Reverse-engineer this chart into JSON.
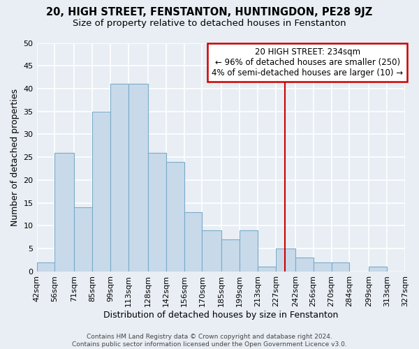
{
  "title": "20, HIGH STREET, FENSTANTON, HUNTINGDON, PE28 9JZ",
  "subtitle": "Size of property relative to detached houses in Fenstanton",
  "xlabel": "Distribution of detached houses by size in Fenstanton",
  "ylabel": "Number of detached properties",
  "bin_edges": [
    42,
    56,
    71,
    85,
    99,
    113,
    128,
    142,
    156,
    170,
    185,
    199,
    213,
    227,
    242,
    256,
    270,
    284,
    299,
    313,
    327
  ],
  "bar_heights": [
    2,
    26,
    14,
    35,
    41,
    41,
    26,
    24,
    13,
    9,
    7,
    9,
    1,
    5,
    3,
    2,
    2,
    0,
    1,
    0
  ],
  "bar_color": "#c8daea",
  "bar_edge_color": "#7aaac8",
  "reference_line_x": 234,
  "reference_line_color": "#cc0000",
  "annotation_line1": "20 HIGH STREET: 234sqm",
  "annotation_line2": "← 96% of detached houses are smaller (250)",
  "annotation_line3": "4% of semi-detached houses are larger (10) →",
  "annotation_box_color": "#ffffff",
  "annotation_box_edge_color": "#cc0000",
  "ylim": [
    0,
    50
  ],
  "yticks": [
    0,
    5,
    10,
    15,
    20,
    25,
    30,
    35,
    40,
    45,
    50
  ],
  "tick_labels": [
    "42sqm",
    "56sqm",
    "71sqm",
    "85sqm",
    "99sqm",
    "113sqm",
    "128sqm",
    "142sqm",
    "156sqm",
    "170sqm",
    "185sqm",
    "199sqm",
    "213sqm",
    "227sqm",
    "242sqm",
    "256sqm",
    "270sqm",
    "284sqm",
    "299sqm",
    "313sqm",
    "327sqm"
  ],
  "footer_text": "Contains HM Land Registry data © Crown copyright and database right 2024.\nContains public sector information licensed under the Open Government Licence v3.0.",
  "background_color": "#e8eef4",
  "grid_color": "#ffffff",
  "title_fontsize": 10.5,
  "subtitle_fontsize": 9.5,
  "axis_label_fontsize": 9,
  "tick_fontsize": 8,
  "footer_fontsize": 6.5,
  "annotation_fontsize": 8.5
}
